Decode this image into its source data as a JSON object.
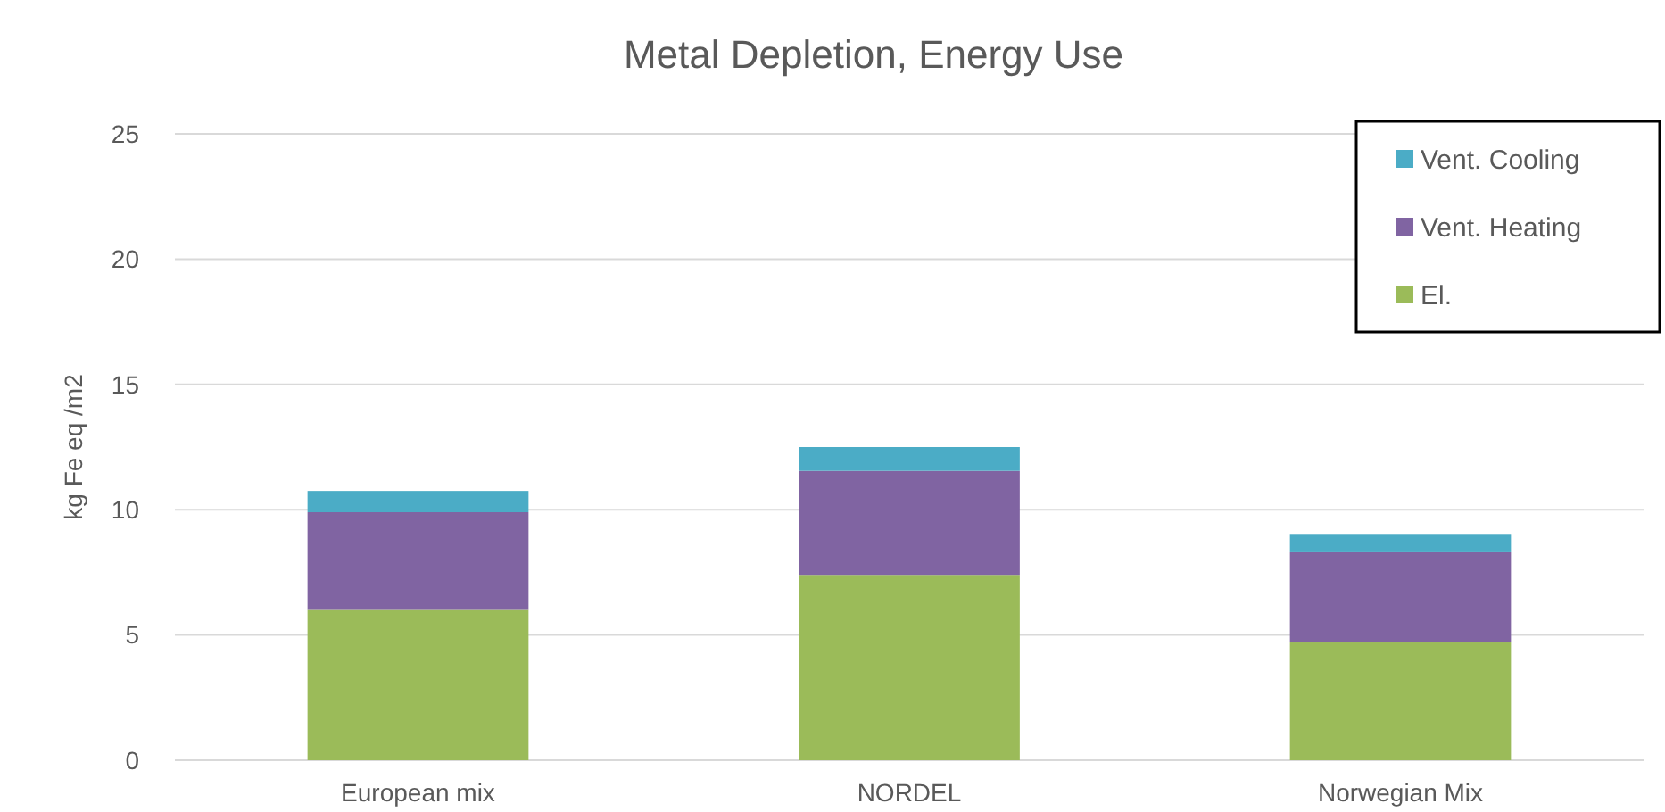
{
  "chart_data": {
    "type": "bar",
    "title": "Metal Depletion, Energy Use",
    "ylabel": "kg Fe eq /m2",
    "categories": [
      "European mix",
      "NORDEL",
      "Norwegian Mix"
    ],
    "stacked": true,
    "series": [
      {
        "name": "El.",
        "color": "#9bbb59",
        "values": [
          6.0,
          7.4,
          4.7
        ]
      },
      {
        "name": "Vent. Heating",
        "color": "#8064a2",
        "values": [
          3.9,
          4.15,
          3.6
        ]
      },
      {
        "name": "Vent. Cooling",
        "color": "#4bacc6",
        "values": [
          0.85,
          0.95,
          0.7
        ]
      }
    ],
    "ylim": [
      0,
      25
    ],
    "yticks": [
      0,
      5,
      10,
      15,
      20,
      25
    ],
    "grid": "y",
    "legend": "top right"
  }
}
